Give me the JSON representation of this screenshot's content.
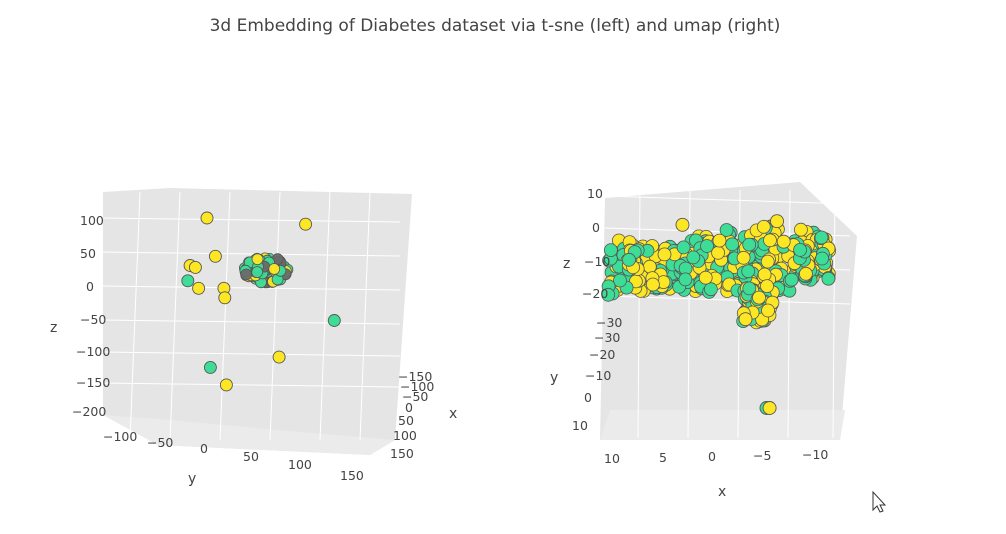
{
  "chart_data": [
    {
      "type": "scatter",
      "title": "3d Embedding of Diabetes dataset via t-sne (left) and  umap (right)",
      "dimensions": 3,
      "axes": {
        "x": {
          "label": "x",
          "ticks": [
            "−150",
            "−100",
            "−50",
            "0",
            "50",
            "100",
            "150"
          ]
        },
        "y": {
          "label": "y",
          "ticks": [
            "−100",
            "−50",
            "0",
            "50",
            "100",
            "150"
          ]
        },
        "z": {
          "label": "z",
          "ticks": [
            "100",
            "50",
            "0",
            "−50",
            "−100",
            "−150",
            "−200"
          ]
        }
      },
      "colors": {
        "class_a": "#fde725",
        "class_b": "#3ddc97"
      },
      "points": [
        {
          "x": 0,
          "y": 0,
          "z": 100,
          "c": "class_a"
        },
        {
          "x": 40,
          "y": 130,
          "z": 110,
          "c": "class_a"
        },
        {
          "x": 5,
          "y": 10,
          "z": 40,
          "c": "class_a"
        },
        {
          "x": -10,
          "y": -20,
          "z": 20,
          "c": "class_a"
        },
        {
          "x": -5,
          "y": -15,
          "z": 18,
          "c": "class_a"
        },
        {
          "x": -15,
          "y": -20,
          "z": -5,
          "c": "class_b"
        },
        {
          "x": -5,
          "y": -10,
          "z": -15,
          "c": "class_a"
        },
        {
          "x": 10,
          "y": 20,
          "z": -10,
          "c": "class_a"
        },
        {
          "x": 5,
          "y": 25,
          "z": -25,
          "c": "class_a"
        },
        {
          "x": 90,
          "y": 140,
          "z": -40,
          "c": "class_b"
        },
        {
          "x": 50,
          "y": 80,
          "z": -110,
          "c": "class_a"
        },
        {
          "x": -20,
          "y": 20,
          "z": -140,
          "c": "class_b"
        },
        {
          "x": -5,
          "y": 35,
          "z": -165,
          "c": "class_a"
        }
      ]
    },
    {
      "type": "scatter",
      "title": "",
      "dimensions": 3,
      "axes": {
        "x": {
          "label": "x",
          "ticks": [
            "10",
            "5",
            "0",
            "−5",
            "−10"
          ]
        },
        "y": {
          "label": "y",
          "ticks": [
            "−30",
            "−20",
            "−10",
            "0",
            "10"
          ]
        },
        "z": {
          "label": "z",
          "ticks": [
            "10",
            "0",
            "−10",
            "−20",
            "−30"
          ]
        }
      },
      "colors": {
        "class_a": "#fde725",
        "class_b": "#3ddc97"
      },
      "points": [
        {
          "x": 3,
          "y": -10,
          "z": 2,
          "c": "class_a"
        },
        {
          "x": -6,
          "y": -10,
          "z": 3,
          "c": "class_a"
        },
        {
          "x": -3,
          "y": -5,
          "z": -22,
          "c": "class_a"
        },
        {
          "x": -5,
          "y": 10,
          "z": -40,
          "c": "class_b"
        },
        {
          "x": -5.3,
          "y": 10,
          "z": -40,
          "c": "class_a"
        }
      ]
    }
  ]
}
